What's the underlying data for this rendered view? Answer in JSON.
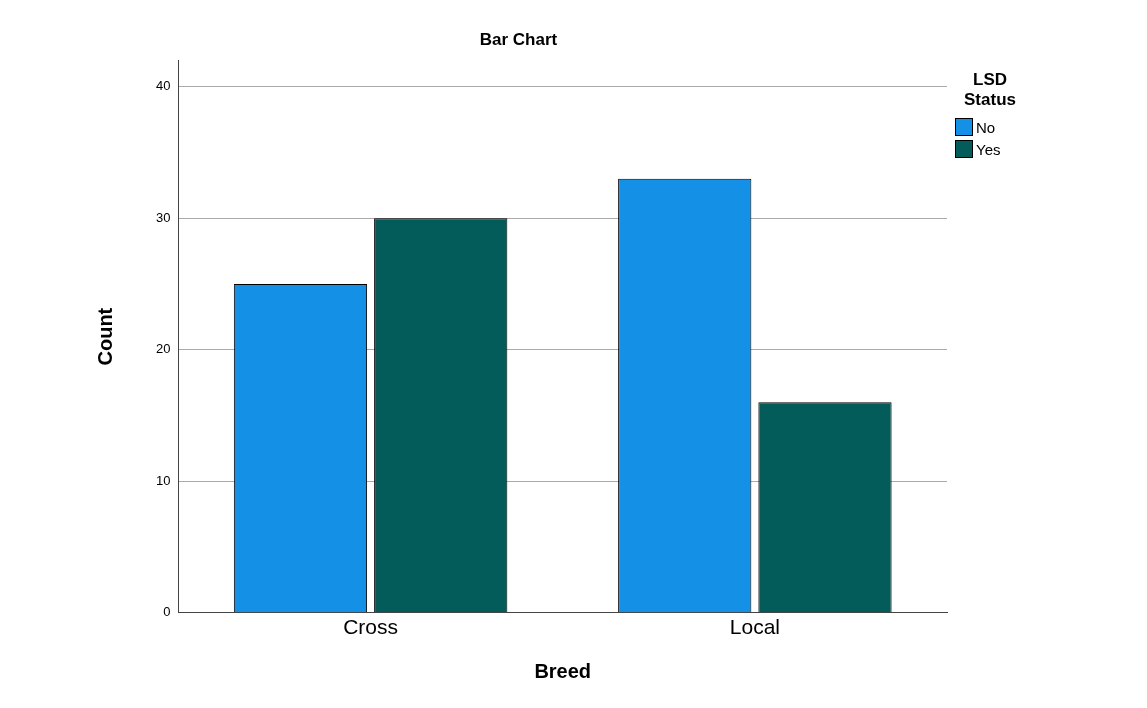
{
  "chart_data": {
    "type": "bar",
    "title": "Bar Chart",
    "xlabel": "Breed",
    "ylabel": "Count",
    "legend_title": "LSD Status",
    "categories": [
      "Cross",
      "Local"
    ],
    "series": [
      {
        "name": "No",
        "color": "#1490e6",
        "values": [
          25,
          33
        ]
      },
      {
        "name": "Yes",
        "color": "#045c5a",
        "values": [
          30,
          16
        ]
      }
    ],
    "ylim": [
      0,
      42
    ],
    "yticks": [
      0,
      10,
      20,
      30,
      40
    ],
    "grid": "y",
    "legend": "top right"
  }
}
